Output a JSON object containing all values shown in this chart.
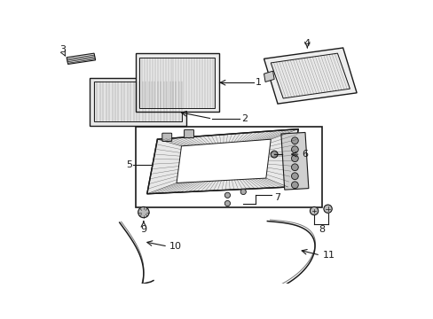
{
  "bg_color": "#ffffff",
  "line_color": "#1a1a1a",
  "gray_fill": "#cccccc",
  "dark_gray": "#888888"
}
